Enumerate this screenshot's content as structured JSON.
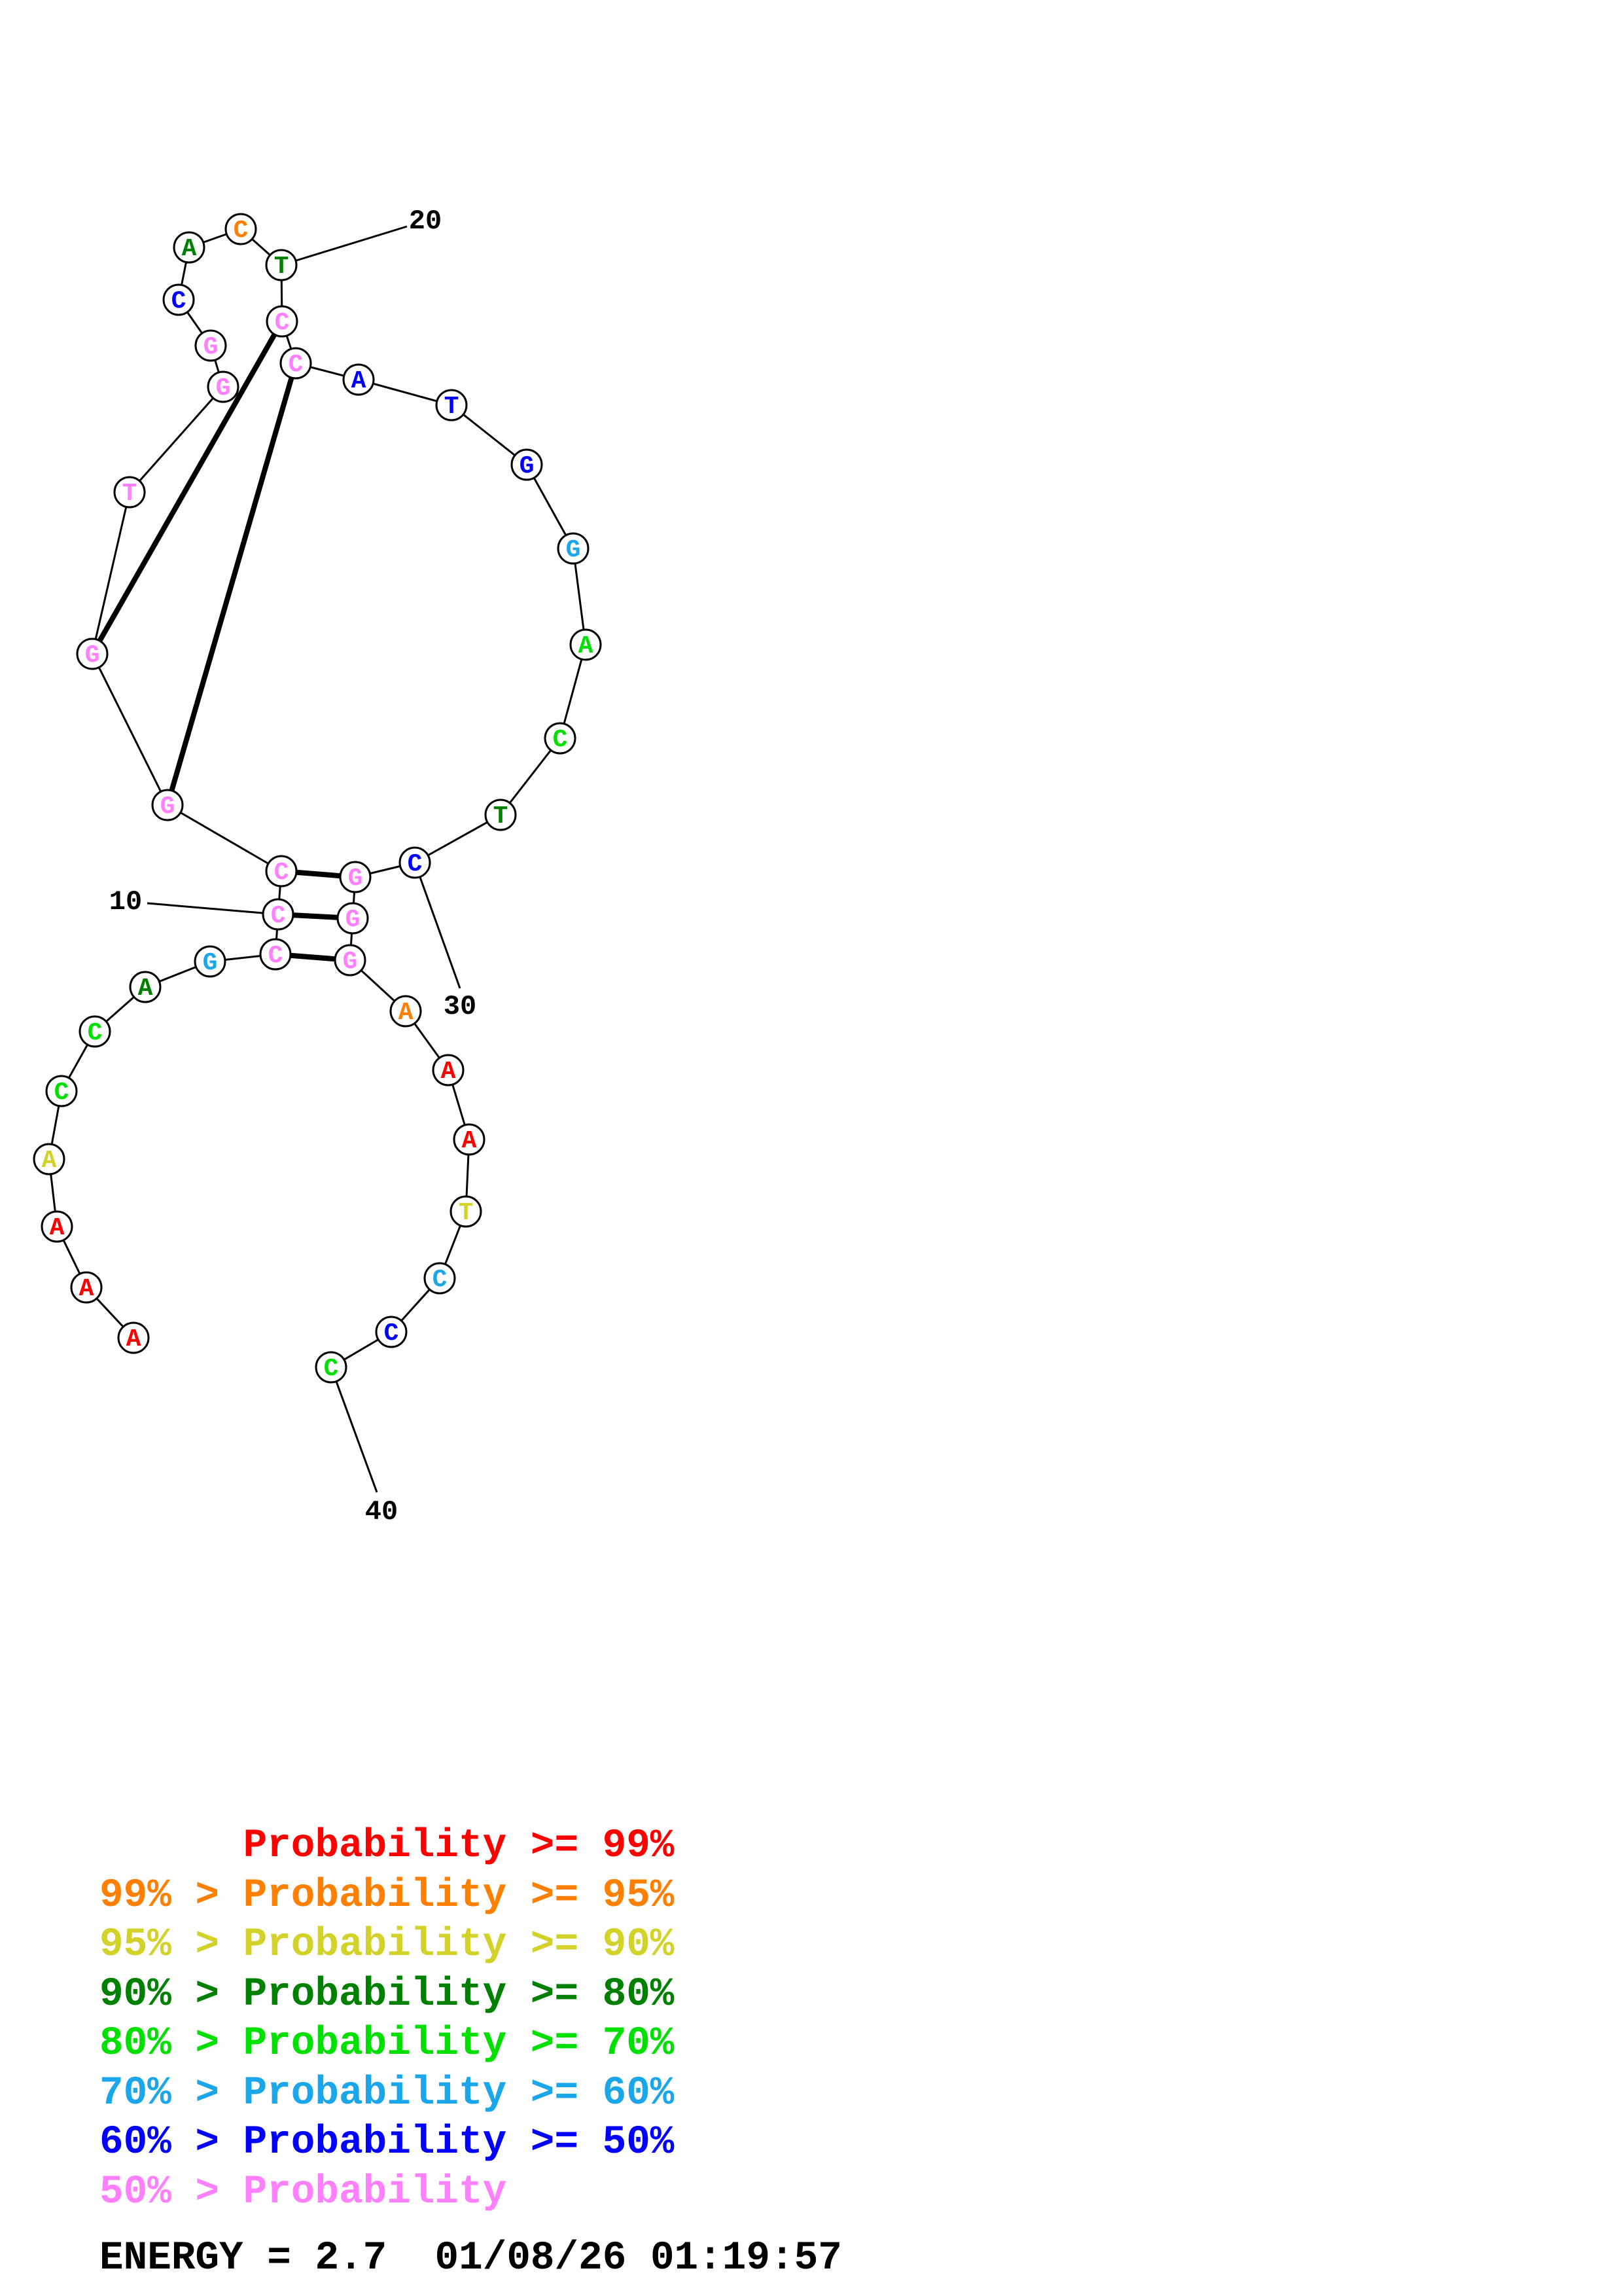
{
  "colors": {
    "p99": "#ff0000",
    "p95": "#ff8000",
    "p90": "#d2d22a",
    "p80": "#008000",
    "p70": "#00e000",
    "p60": "#1aa6e8",
    "p50": "#0000ff",
    "plow": "#ff80ff",
    "line": "#000000"
  },
  "bases": [
    {
      "n": 1,
      "letter": "A",
      "prob": "p99"
    },
    {
      "n": 2,
      "letter": "A",
      "prob": "p99"
    },
    {
      "n": 3,
      "letter": "A",
      "prob": "p99"
    },
    {
      "n": 4,
      "letter": "A",
      "prob": "p90"
    },
    {
      "n": 5,
      "letter": "C",
      "prob": "p70"
    },
    {
      "n": 6,
      "letter": "C",
      "prob": "p70"
    },
    {
      "n": 7,
      "letter": "A",
      "prob": "p80"
    },
    {
      "n": 8,
      "letter": "G",
      "prob": "p60"
    },
    {
      "n": 9,
      "letter": "C",
      "prob": "plow"
    },
    {
      "n": 10,
      "letter": "C",
      "prob": "plow"
    },
    {
      "n": 11,
      "letter": "C",
      "prob": "plow"
    },
    {
      "n": 12,
      "letter": "G",
      "prob": "plow"
    },
    {
      "n": 13,
      "letter": "G",
      "prob": "plow"
    },
    {
      "n": 14,
      "letter": "T",
      "prob": "plow"
    },
    {
      "n": 15,
      "letter": "G",
      "prob": "plow"
    },
    {
      "n": 16,
      "letter": "G",
      "prob": "plow"
    },
    {
      "n": 17,
      "letter": "C",
      "prob": "p50"
    },
    {
      "n": 18,
      "letter": "A",
      "prob": "p80"
    },
    {
      "n": 19,
      "letter": "C",
      "prob": "p95"
    },
    {
      "n": 20,
      "letter": "T",
      "prob": "p80"
    },
    {
      "n": 21,
      "letter": "C",
      "prob": "plow"
    },
    {
      "n": 22,
      "letter": "C",
      "prob": "plow"
    },
    {
      "n": 23,
      "letter": "A",
      "prob": "p50"
    },
    {
      "n": 24,
      "letter": "T",
      "prob": "p50"
    },
    {
      "n": 25,
      "letter": "G",
      "prob": "p50"
    },
    {
      "n": 26,
      "letter": "G",
      "prob": "p60"
    },
    {
      "n": 27,
      "letter": "A",
      "prob": "p70"
    },
    {
      "n": 28,
      "letter": "C",
      "prob": "p70"
    },
    {
      "n": 29,
      "letter": "T",
      "prob": "p80"
    },
    {
      "n": 30,
      "letter": "C",
      "prob": "p50"
    },
    {
      "n": 31,
      "letter": "G",
      "prob": "plow"
    },
    {
      "n": 32,
      "letter": "G",
      "prob": "plow"
    },
    {
      "n": 33,
      "letter": "G",
      "prob": "plow"
    },
    {
      "n": 34,
      "letter": "A",
      "prob": "p95"
    },
    {
      "n": 35,
      "letter": "A",
      "prob": "p99"
    },
    {
      "n": 36,
      "letter": "A",
      "prob": "p99"
    },
    {
      "n": 37,
      "letter": "T",
      "prob": "p90"
    },
    {
      "n": 38,
      "letter": "C",
      "prob": "p60"
    },
    {
      "n": 39,
      "letter": "C",
      "prob": "p50"
    },
    {
      "n": 40,
      "letter": "C",
      "prob": "p70"
    }
  ],
  "pairs": [
    [
      9,
      33
    ],
    [
      10,
      32
    ],
    [
      11,
      31
    ],
    [
      12,
      22
    ],
    [
      13,
      21
    ]
  ],
  "position_labels": [
    {
      "n": 10,
      "text": "10"
    },
    {
      "n": 20,
      "text": "20"
    },
    {
      "n": 30,
      "text": "30"
    },
    {
      "n": 40,
      "text": "40"
    }
  ],
  "legend": [
    {
      "left": "",
      "sep": "",
      "mid": "Probability",
      "right": ">= 99%",
      "color": "p99"
    },
    {
      "left": "99%",
      "sep": ">",
      "mid": "Probability",
      "right": ">= 95%",
      "color": "p95"
    },
    {
      "left": "95%",
      "sep": ">",
      "mid": "Probability",
      "right": ">= 90%",
      "color": "p90"
    },
    {
      "left": "90%",
      "sep": ">",
      "mid": "Probability",
      "right": ">= 80%",
      "color": "p80"
    },
    {
      "left": "80%",
      "sep": ">",
      "mid": "Probability",
      "right": ">= 70%",
      "color": "p70"
    },
    {
      "left": "70%",
      "sep": ">",
      "mid": "Probability",
      "right": ">= 60%",
      "color": "p60"
    },
    {
      "left": "60%",
      "sep": ">",
      "mid": "Probability",
      "right": ">= 50%",
      "color": "p50"
    },
    {
      "left": "50%",
      "sep": ">",
      "mid": "Probability",
      "right": "",
      "color": "plow"
    }
  ],
  "footer": {
    "energy": "ENERGY = 2.7",
    "timestamp": "01/08/26 01:19:57"
  }
}
